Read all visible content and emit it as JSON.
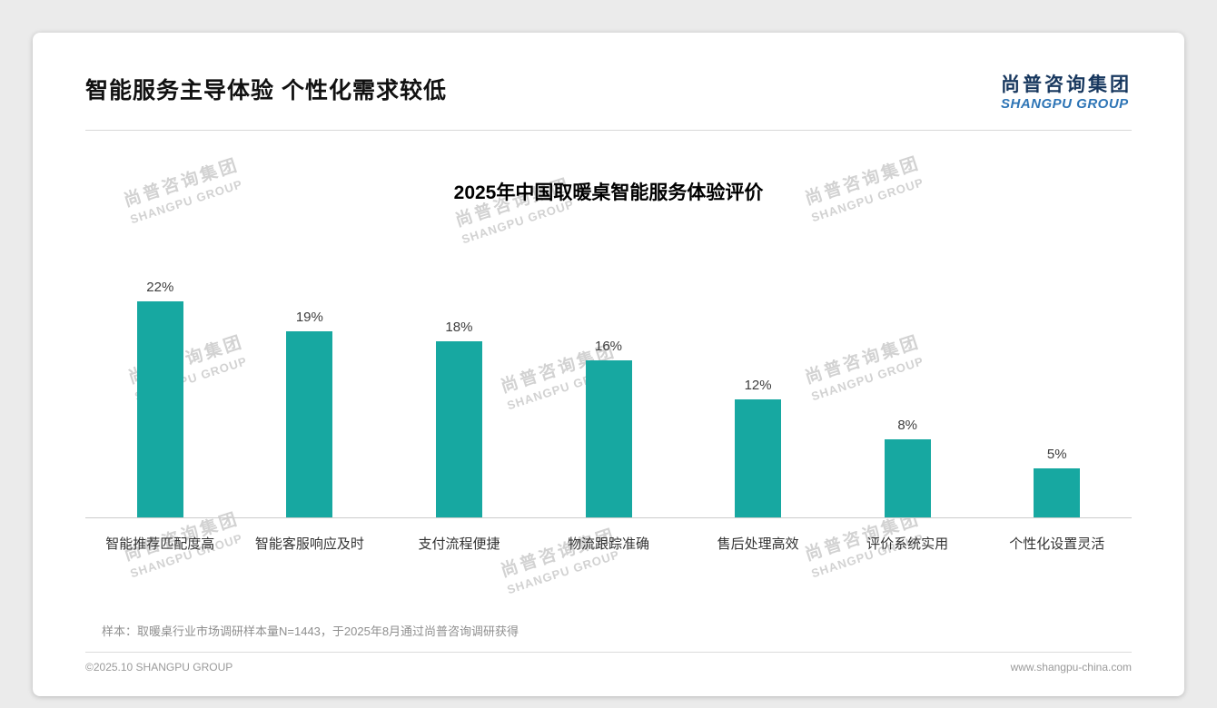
{
  "header": {
    "title": "智能服务主导体验 个性化需求较低",
    "logo": {
      "chinese": "尚普咨询集团",
      "english": "SHANGPU GROUP"
    }
  },
  "chart_data": {
    "type": "bar",
    "title": "2025年中国取暖桌智能服务体验评价",
    "categories": [
      "智能推荐匹配度高",
      "智能客服响应及时",
      "支付流程便捷",
      "物流跟踪准确",
      "售后处理高效",
      "评价系统实用",
      "个性化设置灵活"
    ],
    "values": [
      22,
      19,
      18,
      16,
      12,
      8,
      5
    ],
    "value_labels": [
      "22%",
      "19%",
      "18%",
      "16%",
      "12%",
      "8%",
      "5%"
    ],
    "unit": "%",
    "ylim": [
      0,
      24
    ],
    "bar_color": "#17a8a1",
    "grid": false,
    "legend": false
  },
  "watermark": {
    "line1": "尚普咨询集团",
    "line2": "SHANGPU GROUP"
  },
  "footnote": "样本：取暖桌行业市场调研样本量N=1443，于2025年8月通过尚普咨询调研获得",
  "footer": {
    "copyright": "©2025.10 SHANGPU GROUP",
    "website": "www.shangpu-china.com"
  }
}
